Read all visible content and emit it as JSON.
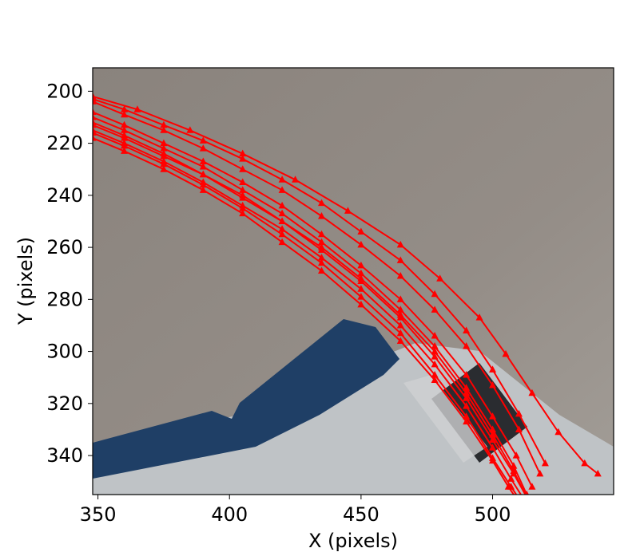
{
  "chart_data": {
    "type": "line",
    "title": "",
    "xlabel": "X (pixels)",
    "ylabel": "Y (pixels)",
    "xlim": [
      348,
      546
    ],
    "ylim": [
      355,
      191
    ],
    "y_inverted": true,
    "grid": false,
    "legend": "none",
    "xticks": [
      350,
      400,
      450,
      500
    ],
    "yticks": [
      200,
      220,
      240,
      260,
      280,
      300,
      320,
      340
    ],
    "marker": "triangle-up",
    "colors": {
      "series": "#ff0000",
      "background": "#8f8880"
    },
    "background_image": "camera frame showing grey wall with blue and white object and dark slot in lower right",
    "series": [
      {
        "x": [
          348,
          360,
          375,
          390,
          405,
          420,
          435,
          450,
          465,
          478,
          490,
          500,
          508,
          513
        ],
        "y": [
          213,
          218,
          225,
          232,
          241,
          250,
          261,
          273,
          287,
          302,
          318,
          334,
          347,
          356
        ]
      },
      {
        "x": [
          348,
          360,
          375,
          390,
          405,
          420,
          435,
          450,
          465,
          478,
          490,
          500,
          507,
          511
        ],
        "y": [
          216,
          221,
          228,
          236,
          245,
          255,
          266,
          279,
          293,
          309,
          325,
          341,
          352,
          358
        ]
      },
      {
        "x": [
          348,
          360,
          375,
          390,
          405,
          420,
          435,
          450,
          465,
          478,
          490,
          500,
          508,
          513
        ],
        "y": [
          210,
          215,
          222,
          229,
          238,
          247,
          258,
          270,
          284,
          298,
          314,
          330,
          344,
          355
        ]
      },
      {
        "x": [
          348,
          360,
          375,
          390,
          405,
          420,
          435,
          450,
          465,
          478,
          490,
          500,
          506,
          510
        ],
        "y": [
          218,
          223,
          230,
          238,
          247,
          258,
          269,
          282,
          296,
          311,
          327,
          342,
          352,
          358
        ]
      },
      {
        "x": [
          348,
          360,
          375,
          390,
          405,
          420,
          435,
          450,
          465,
          478,
          490,
          500,
          509,
          515
        ],
        "y": [
          208,
          213,
          220,
          227,
          235,
          244,
          255,
          267,
          280,
          294,
          309,
          325,
          340,
          352
        ]
      },
      {
        "x": [
          348,
          360,
          375,
          390,
          405,
          420,
          435,
          450,
          465,
          478,
          490,
          500,
          508,
          513
        ],
        "y": [
          212,
          217,
          224,
          232,
          240,
          250,
          260,
          272,
          286,
          300,
          316,
          332,
          346,
          356
        ]
      },
      {
        "x": [
          348,
          360,
          375,
          390,
          405,
          420,
          435,
          450,
          465,
          478,
          490,
          500,
          507,
          512
        ],
        "y": [
          215,
          220,
          227,
          235,
          244,
          253,
          264,
          276,
          290,
          305,
          321,
          337,
          349,
          357
        ]
      },
      {
        "x": [
          348,
          360,
          375,
          390,
          405,
          420,
          435,
          450,
          465,
          478,
          490,
          500,
          510,
          518
        ],
        "y": [
          204,
          209,
          215,
          222,
          230,
          238,
          248,
          259,
          271,
          284,
          298,
          313,
          330,
          347
        ]
      },
      {
        "x": [
          348,
          360,
          375,
          390,
          405,
          420,
          435,
          450,
          465,
          478,
          490,
          500,
          510,
          520
        ],
        "y": [
          203,
          207,
          213,
          219,
          226,
          234,
          243,
          254,
          265,
          278,
          292,
          307,
          324,
          343
        ]
      },
      {
        "x": [
          348,
          365,
          385,
          405,
          425,
          445,
          465,
          480,
          495,
          505,
          515,
          525,
          535,
          540
        ],
        "y": [
          202,
          207,
          215,
          224,
          234,
          246,
          259,
          272,
          287,
          301,
          316,
          331,
          343,
          347
        ]
      }
    ]
  }
}
